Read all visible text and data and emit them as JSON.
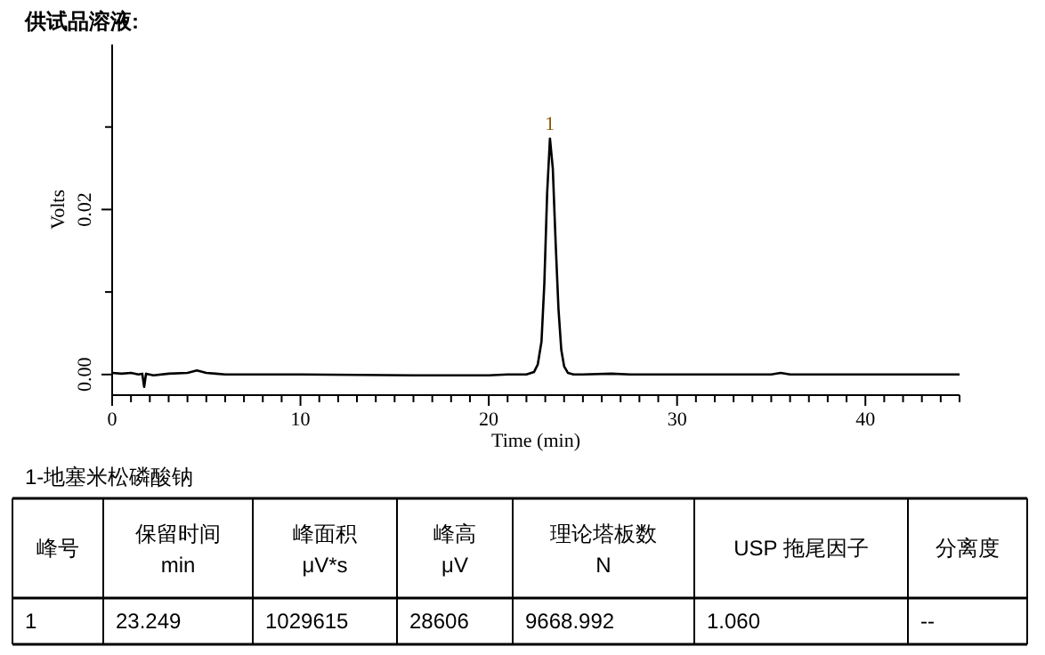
{
  "chart_data": {
    "type": "line",
    "title": "供试品溶液:",
    "xlabel": "Time (min)",
    "ylabel": "Volts",
    "xlim": [
      0,
      45
    ],
    "ylim": [
      -0.0025,
      0.04
    ],
    "xticks": [
      0,
      {
        "value": 1,
        "label": null
      },
      {
        "value": 2,
        "label": null
      },
      {
        "value": 3,
        "label": null
      },
      {
        "value": 4,
        "label": null
      },
      {
        "value": 5,
        "label": null
      },
      {
        "value": 6,
        "label": null
      },
      {
        "value": 7,
        "label": null
      },
      {
        "value": 8,
        "label": null
      },
      {
        "value": 9,
        "label": null
      },
      10,
      {
        "value": 11,
        "label": null
      },
      {
        "value": 12,
        "label": null
      },
      {
        "value": 13,
        "label": null
      },
      {
        "value": 14,
        "label": null
      },
      {
        "value": 15,
        "label": null
      },
      {
        "value": 16,
        "label": null
      },
      {
        "value": 17,
        "label": null
      },
      {
        "value": 18,
        "label": null
      },
      {
        "value": 19,
        "label": null
      },
      20,
      {
        "value": 21,
        "label": null
      },
      {
        "value": 22,
        "label": null
      },
      {
        "value": 23,
        "label": null
      },
      {
        "value": 24,
        "label": null
      },
      {
        "value": 25,
        "label": null
      },
      {
        "value": 26,
        "label": null
      },
      {
        "value": 27,
        "label": null
      },
      {
        "value": 28,
        "label": null
      },
      {
        "value": 29,
        "label": null
      },
      30,
      {
        "value": 31,
        "label": null
      },
      {
        "value": 32,
        "label": null
      },
      {
        "value": 33,
        "label": null
      },
      {
        "value": 34,
        "label": null
      },
      {
        "value": 35,
        "label": null
      },
      {
        "value": 36,
        "label": null
      },
      {
        "value": 37,
        "label": null
      },
      {
        "value": 38,
        "label": null
      },
      {
        "value": 39,
        "label": null
      },
      40,
      {
        "value": 41,
        "label": null
      },
      {
        "value": 42,
        "label": null
      },
      {
        "value": 43,
        "label": null
      },
      {
        "value": 44,
        "label": null
      },
      {
        "value": 45,
        "label": null
      }
    ],
    "yticks": [
      {
        "value": 0,
        "label": "0.00"
      },
      {
        "value": 0.01,
        "label": null
      },
      {
        "value": 0.02,
        "label": "0.02"
      },
      {
        "value": 0.03,
        "label": null
      }
    ],
    "grid": false,
    "marker": "none",
    "line_style": "solid",
    "series": [
      {
        "color": "#000000",
        "x": [
          0,
          0.5,
          1,
          1.4,
          1.6,
          1.7,
          1.8,
          2.2,
          3,
          4,
          4.5,
          5,
          5.5,
          6,
          10,
          16,
          20,
          21,
          22,
          22.4,
          22.6,
          22.8,
          22.95,
          23.1,
          23.249,
          23.4,
          23.55,
          23.7,
          23.85,
          24.0,
          24.2,
          24.5,
          25,
          26.5,
          27.5,
          30,
          35,
          35.5,
          36,
          40,
          43,
          45
        ],
        "values": [
          0.0002,
          0.0001,
          0.0002,
          0,
          0.0001,
          -0.0015,
          0.0001,
          -0.0001,
          0.0001,
          0.0002,
          0.0005,
          0.0002,
          0.0001,
          0,
          0,
          -0.0001,
          -0.0001,
          0,
          0,
          0.0003,
          0.0012,
          0.004,
          0.011,
          0.022,
          0.0286,
          0.025,
          0.016,
          0.008,
          0.003,
          0.001,
          0.0002,
          0,
          0,
          0.0001,
          0,
          0,
          0,
          0.0002,
          0,
          0,
          0,
          0
        ]
      }
    ],
    "annotations": [
      {
        "text": "1",
        "x": 23.249,
        "y": 0.0286
      },
      "1-地塞米松磷酸钠",
      "峰号",
      "保留时间\nmin",
      "峰面积\nμV*s",
      "峰高\nμV",
      "理论塔板数\nN",
      "USP 拖尾因子",
      "分离度",
      "1",
      "23.249",
      "1029615",
      "28606",
      "9668.992",
      "1.060",
      "--"
    ]
  }
}
